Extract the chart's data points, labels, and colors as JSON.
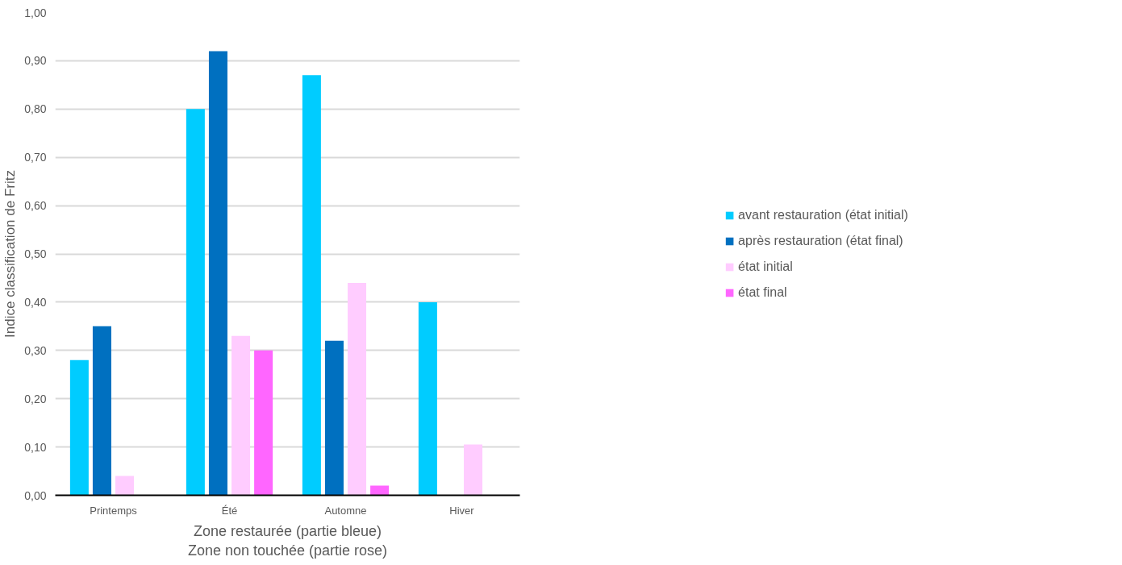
{
  "chart_data": {
    "type": "bar",
    "categories": [
      "Printemps",
      "Été",
      "Automne",
      "Hiver"
    ],
    "xlabel": "Zone restaurée (partie bleue)\nZone non touchée (partie rose)",
    "ylabel": "Indice classification de Fritz",
    "ylim": [
      0,
      1
    ],
    "yticks": [
      {
        "value": 0,
        "label": "0,00"
      },
      {
        "value": 0.1,
        "label": "0,10"
      },
      {
        "value": 0.2,
        "label": "0,20"
      },
      {
        "value": 0.3,
        "label": "0,30"
      },
      {
        "value": 0.4,
        "label": "0,40"
      },
      {
        "value": 0.5,
        "label": "0,50"
      },
      {
        "value": 0.6,
        "label": "0,60"
      },
      {
        "value": 0.7,
        "label": "0,70"
      },
      {
        "value": 0.8,
        "label": "0,80"
      },
      {
        "value": 0.9,
        "label": "0,90"
      },
      {
        "value": 1,
        "label": "1,00"
      }
    ],
    "grid": "y",
    "legend": "right",
    "series": [
      {
        "name": "avant restauration (état initial)",
        "color": "#00ccff",
        "values": [
          0.28,
          0.8,
          0.87,
          0.4
        ]
      },
      {
        "name": "après restauration (état final)",
        "color": "#0070c0",
        "values": [
          0.35,
          0.92,
          0.32,
          null
        ]
      },
      {
        "name": "état initial",
        "color": "#ffccff",
        "values": [
          0.04,
          0.33,
          0.44,
          0.105
        ]
      },
      {
        "name": "état final",
        "color": "#ff66ff",
        "values": [
          null,
          0.3,
          0.02,
          null
        ]
      }
    ]
  }
}
